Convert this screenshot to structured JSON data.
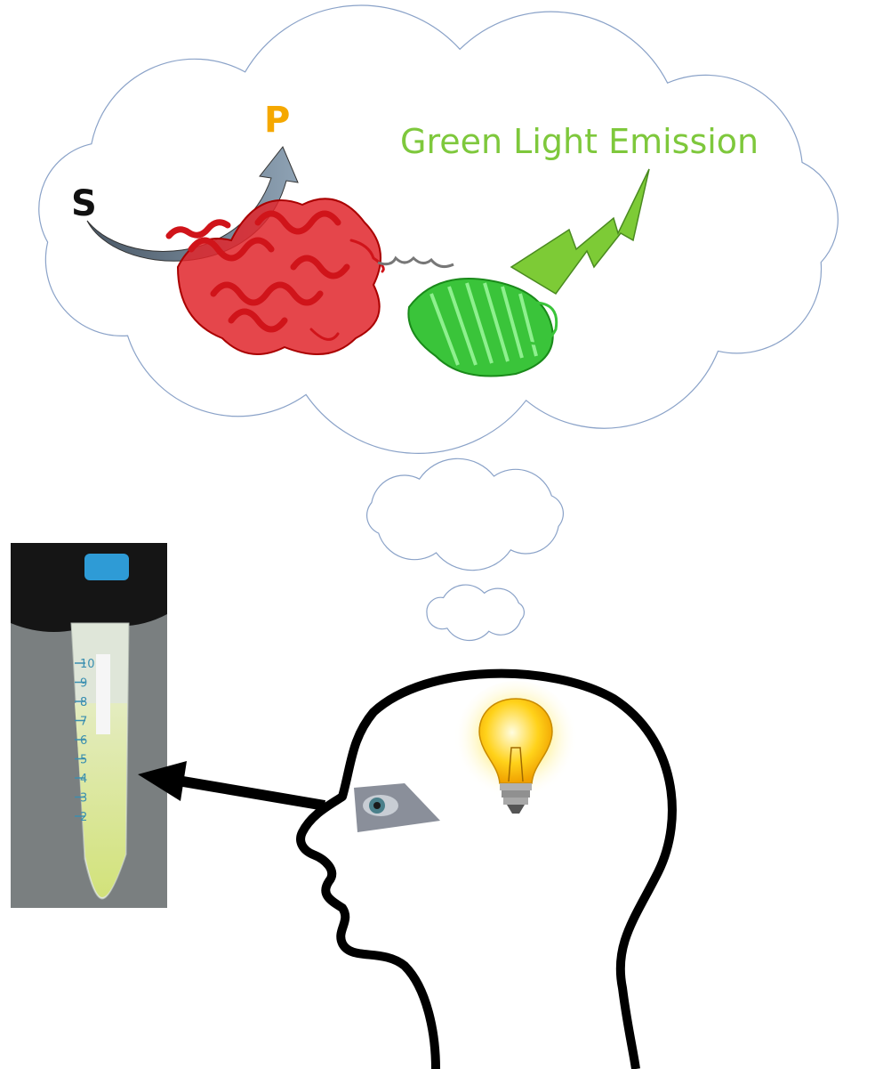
{
  "labels": {
    "substrate": "S",
    "product": "P",
    "emission": "Green Light Emission"
  },
  "tube": {
    "graduations": [
      "10",
      "9",
      "8",
      "7",
      "6",
      "5",
      "4",
      "3",
      "2"
    ]
  }
}
